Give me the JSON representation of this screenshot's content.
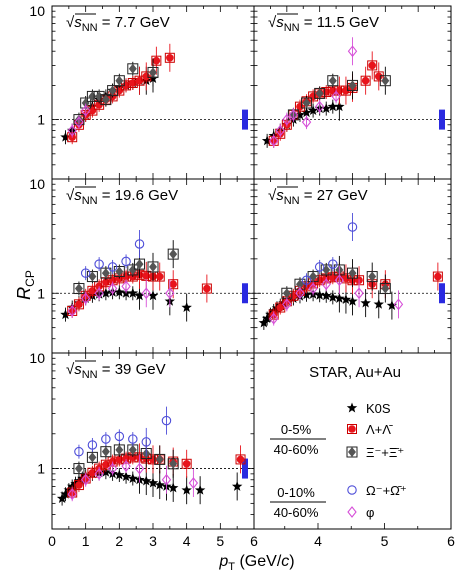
{
  "figure": {
    "ylabel": "R_CP",
    "xlabel": "p_T (GeV/c)",
    "xticks": [
      "0",
      "1",
      "2",
      "3",
      "4",
      "5",
      "6"
    ],
    "yticks": [
      "1",
      "10"
    ],
    "experiment": "STAR, Au+Au",
    "centrality_top": [
      "0-5%",
      "40-60%"
    ],
    "centrality_bottom": [
      "0-10%",
      "40-60%"
    ],
    "legend": [
      {
        "label": "K0S",
        "symbol": "star",
        "color": "#000000"
      },
      {
        "label": "Λ+Λ̄",
        "symbol": "circle-filled",
        "color": "#e8141c"
      },
      {
        "label": "Ξ⁻+Ξ̄⁺",
        "symbol": "diamond-filled",
        "color": "#555555"
      },
      {
        "label": "Ω⁻+Ω̄⁺",
        "symbol": "circle-open",
        "color": "#4d4dd8"
      },
      {
        "label": "φ",
        "symbol": "diamond-open",
        "color": "#d64fd8"
      }
    ],
    "colors": {
      "kaon": "#000000",
      "lambda": "#e8141c",
      "xi": "#555555",
      "omega": "#4d4dd8",
      "phi": "#d64fd8",
      "norm": "#2a2ae0"
    }
  },
  "chart_data": [
    {
      "type": "scatter",
      "energy": "7.7 GeV",
      "xlim": [
        0,
        6
      ],
      "ylim": [
        0.3,
        10
      ],
      "log_y": true,
      "series": [
        {
          "name": "K0S",
          "x": [
            0.4,
            0.6,
            0.8,
            1.0,
            1.2,
            1.4,
            1.6,
            1.8,
            2.0,
            2.2,
            2.4,
            2.6,
            2.8,
            3.0
          ],
          "y": [
            0.7,
            0.8,
            0.95,
            1.1,
            1.3,
            1.5,
            1.6,
            1.8,
            1.9,
            2.0,
            2.1,
            2.2,
            2.2,
            2.3
          ]
        },
        {
          "name": "Λ+Λ̄",
          "x": [
            0.6,
            0.8,
            1.0,
            1.2,
            1.4,
            1.6,
            1.8,
            2.0,
            2.2,
            2.4,
            2.6,
            2.8,
            3.1,
            3.5
          ],
          "y": [
            0.7,
            0.9,
            1.1,
            1.2,
            1.35,
            1.5,
            1.6,
            1.8,
            2.0,
            2.1,
            2.2,
            2.4,
            3.3,
            3.5
          ]
        },
        {
          "name": "Ξ⁻+Ξ̄⁺",
          "x": [
            0.8,
            1.0,
            1.2,
            1.4,
            1.6,
            1.8,
            2.0,
            2.4,
            3.0
          ],
          "y": [
            1.0,
            1.4,
            1.6,
            1.6,
            1.5,
            1.8,
            2.2,
            2.8,
            2.6
          ]
        },
        {
          "name": "Ω⁻+Ω̄⁺",
          "x": [],
          "y": []
        },
        {
          "name": "φ",
          "x": [
            0.6,
            0.8,
            1.0
          ],
          "y": [
            0.8,
            0.95,
            1.2
          ]
        }
      ]
    },
    {
      "type": "scatter",
      "energy": "11.5 GeV",
      "xlim": [
        0,
        6
      ],
      "ylim": [
        0.3,
        10
      ],
      "log_y": true,
      "series": [
        {
          "name": "K0S",
          "x": [
            0.4,
            0.6,
            0.8,
            1.0,
            1.2,
            1.4,
            1.6,
            1.8,
            2.0,
            2.2,
            2.4,
            2.6
          ],
          "y": [
            0.65,
            0.72,
            0.8,
            0.9,
            1.0,
            1.1,
            1.15,
            1.2,
            1.25,
            1.25,
            1.3,
            1.3
          ]
        },
        {
          "name": "Λ+Λ̄",
          "x": [
            0.6,
            0.8,
            1.0,
            1.2,
            1.4,
            1.6,
            1.8,
            2.0,
            2.2,
            2.4,
            2.6,
            2.8,
            3.0,
            3.4,
            3.6,
            3.8
          ],
          "y": [
            0.65,
            0.75,
            0.9,
            1.1,
            1.3,
            1.45,
            1.6,
            1.7,
            1.75,
            1.8,
            1.8,
            1.8,
            1.9,
            2.2,
            3.0,
            2.4
          ]
        },
        {
          "name": "Ξ⁻+Ξ̄⁺",
          "x": [
            1.2,
            1.6,
            2.0,
            2.4,
            3.0,
            4.0
          ],
          "y": [
            1.1,
            1.4,
            1.7,
            2.2,
            2.0,
            2.2
          ]
        },
        {
          "name": "Ω⁻+Ω̄⁺",
          "x": [],
          "y": []
        },
        {
          "name": "φ",
          "x": [
            0.6,
            0.8,
            1.0,
            1.2,
            1.6,
            2.0,
            2.5,
            3.0
          ],
          "y": [
            0.65,
            0.8,
            1.0,
            1.1,
            0.95,
            1.3,
            1.6,
            4.0
          ]
        }
      ]
    },
    {
      "type": "scatter",
      "energy": "19.6 GeV",
      "xlim": [
        0,
        6
      ],
      "ylim": [
        0.3,
        10
      ],
      "log_y": true,
      "series": [
        {
          "name": "K0S",
          "x": [
            0.4,
            0.6,
            0.8,
            1.0,
            1.2,
            1.4,
            1.6,
            1.8,
            2.0,
            2.2,
            2.4,
            2.6,
            3.0,
            3.5,
            4.0
          ],
          "y": [
            0.65,
            0.75,
            0.82,
            0.9,
            0.95,
            0.98,
            1.0,
            1.02,
            1.02,
            1.0,
            1.0,
            0.95,
            0.95,
            0.85,
            0.75
          ]
        },
        {
          "name": "Λ+Λ̄",
          "x": [
            0.6,
            0.8,
            1.0,
            1.2,
            1.4,
            1.6,
            1.8,
            2.0,
            2.2,
            2.4,
            2.6,
            2.8,
            3.0,
            3.2,
            3.6,
            4.6
          ],
          "y": [
            0.7,
            0.8,
            0.95,
            1.05,
            1.15,
            1.25,
            1.3,
            1.35,
            1.4,
            1.4,
            1.45,
            1.42,
            1.4,
            1.4,
            1.2,
            1.1
          ]
        },
        {
          "name": "Ξ⁻+Ξ̄⁺",
          "x": [
            0.8,
            1.2,
            1.6,
            2.0,
            2.4,
            2.6,
            3.0,
            3.6
          ],
          "y": [
            1.1,
            1.4,
            1.5,
            1.55,
            1.6,
            1.8,
            1.7,
            2.2
          ]
        },
        {
          "name": "Ω⁻+Ω̄⁺",
          "x": [
            1.0,
            1.4,
            1.8,
            2.2,
            2.6
          ],
          "y": [
            1.5,
            1.8,
            1.7,
            1.9,
            2.7
          ]
        },
        {
          "name": "φ",
          "x": [
            0.6,
            1.0,
            1.4,
            1.8,
            2.2,
            2.8,
            3.5
          ],
          "y": [
            0.7,
            0.9,
            1.0,
            1.1,
            1.15,
            1.0,
            1.0
          ]
        }
      ]
    },
    {
      "type": "scatter",
      "energy": "27 GeV",
      "xlim": [
        0,
        6
      ],
      "ylim": [
        0.3,
        10
      ],
      "log_y": true,
      "series": [
        {
          "name": "K0S",
          "x": [
            0.3,
            0.4,
            0.5,
            0.6,
            0.7,
            0.8,
            0.9,
            1.0,
            1.2,
            1.4,
            1.6,
            1.8,
            2.0,
            2.2,
            2.4,
            2.6,
            2.8,
            3.0,
            3.4,
            3.8,
            4.2
          ],
          "y": [
            0.55,
            0.6,
            0.65,
            0.7,
            0.74,
            0.78,
            0.82,
            0.86,
            0.9,
            0.94,
            0.97,
            0.98,
            0.96,
            0.95,
            0.92,
            0.9,
            0.88,
            0.85,
            0.82,
            0.8,
            0.78
          ]
        },
        {
          "name": "Λ+Λ̄",
          "x": [
            0.6,
            0.8,
            1.0,
            1.2,
            1.4,
            1.6,
            1.8,
            2.0,
            2.2,
            2.4,
            2.6,
            2.8,
            3.0,
            3.2,
            3.6,
            4.0,
            5.6
          ],
          "y": [
            0.65,
            0.75,
            0.85,
            0.95,
            1.05,
            1.15,
            1.22,
            1.3,
            1.35,
            1.38,
            1.4,
            1.35,
            1.3,
            1.3,
            1.2,
            1.2,
            1.4
          ]
        },
        {
          "name": "Ξ⁻+Ξ̄⁺",
          "x": [
            1.0,
            1.4,
            1.8,
            2.2,
            2.6,
            3.0,
            3.6,
            4.0
          ],
          "y": [
            1.0,
            1.2,
            1.4,
            1.6,
            1.6,
            1.5,
            1.4,
            1.1
          ]
        },
        {
          "name": "Ω⁻+Ω̄⁺",
          "x": [
            1.6,
            2.0,
            2.4,
            3.0
          ],
          "y": [
            1.3,
            1.7,
            1.8,
            3.8
          ]
        },
        {
          "name": "φ",
          "x": [
            0.6,
            1.0,
            1.4,
            1.8,
            2.2,
            2.6,
            3.2,
            4.4
          ],
          "y": [
            0.6,
            0.8,
            1.0,
            1.1,
            1.2,
            1.3,
            1.0,
            0.8
          ]
        }
      ]
    },
    {
      "type": "scatter",
      "energy": "39 GeV",
      "xlim": [
        0,
        6
      ],
      "ylim": [
        0.3,
        10
      ],
      "log_y": true,
      "series": [
        {
          "name": "K0S",
          "x": [
            0.3,
            0.4,
            0.5,
            0.6,
            0.7,
            0.8,
            0.9,
            1.0,
            1.2,
            1.4,
            1.6,
            1.8,
            2.0,
            2.2,
            2.4,
            2.6,
            2.8,
            3.0,
            3.2,
            3.4,
            3.6,
            4.0,
            4.4,
            5.5
          ],
          "y": [
            0.55,
            0.6,
            0.65,
            0.7,
            0.74,
            0.78,
            0.82,
            0.86,
            0.9,
            0.92,
            0.93,
            0.9,
            0.88,
            0.85,
            0.82,
            0.8,
            0.78,
            0.75,
            0.72,
            0.7,
            0.68,
            0.65,
            0.65,
            0.7
          ]
        },
        {
          "name": "Λ+Λ̄",
          "x": [
            0.6,
            0.8,
            1.0,
            1.2,
            1.4,
            1.6,
            1.8,
            2.0,
            2.2,
            2.4,
            2.6,
            2.8,
            3.0,
            3.2,
            3.6,
            4.0,
            5.6
          ],
          "y": [
            0.62,
            0.72,
            0.82,
            0.92,
            1.0,
            1.08,
            1.15,
            1.2,
            1.22,
            1.25,
            1.25,
            1.22,
            1.2,
            1.2,
            1.15,
            1.1,
            1.2
          ]
        },
        {
          "name": "Ξ⁻+Ξ̄⁺",
          "x": [
            0.8,
            1.2,
            1.6,
            2.0,
            2.4,
            2.8,
            3.2,
            3.6
          ],
          "y": [
            1.0,
            1.25,
            1.4,
            1.45,
            1.45,
            1.35,
            1.2,
            1.1
          ]
        },
        {
          "name": "Ω⁻+Ω̄⁺",
          "x": [
            0.8,
            1.2,
            1.6,
            2.0,
            2.4,
            2.8,
            3.4
          ],
          "y": [
            1.4,
            1.6,
            1.8,
            1.9,
            1.8,
            1.7,
            2.6
          ]
        },
        {
          "name": "φ",
          "x": [
            0.6,
            1.0,
            1.4,
            1.8,
            2.2,
            2.6,
            3.4,
            4.2
          ],
          "y": [
            0.6,
            0.8,
            0.9,
            1.0,
            1.05,
            1.0,
            0.8,
            0.75
          ]
        }
      ]
    }
  ]
}
